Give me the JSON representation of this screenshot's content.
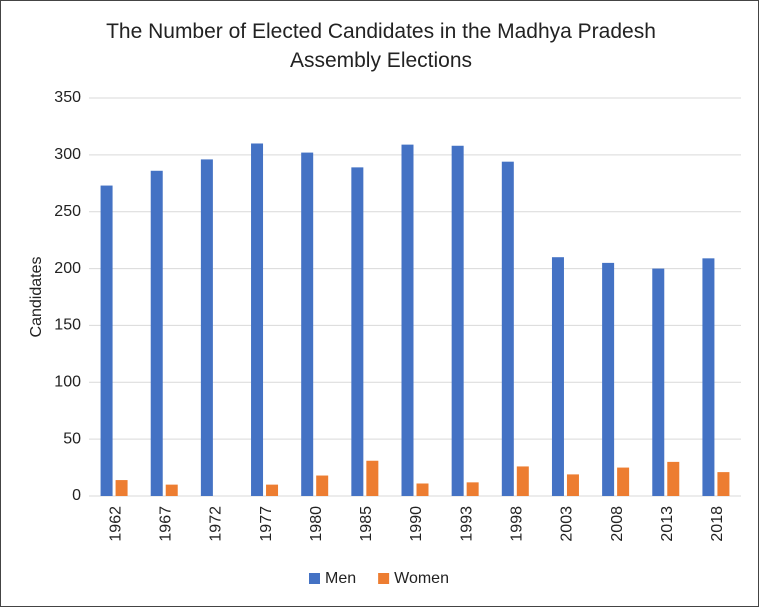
{
  "chart_data": {
    "type": "bar",
    "title": "The Number of Elected Candidates in the Madhya Pradesh Assembly Elections",
    "y_label": "Candidates",
    "categories": [
      "1962",
      "1967",
      "1972",
      "1977",
      "1980",
      "1985",
      "1990",
      "1993",
      "1998",
      "2003",
      "2008",
      "2013",
      "2018"
    ],
    "series": [
      {
        "name": "Men",
        "color": "#4472c4",
        "values": [
          273,
          286,
          296,
          310,
          302,
          289,
          309,
          308,
          294,
          210,
          205,
          200,
          209
        ]
      },
      {
        "name": "Women",
        "color": "#ed7d31",
        "values": [
          14,
          10,
          0,
          10,
          18,
          31,
          11,
          12,
          26,
          19,
          25,
          30,
          21
        ]
      }
    ],
    "ylim": [
      0,
      350
    ],
    "yticks": [
      0,
      50,
      100,
      150,
      200,
      250,
      300,
      350
    ],
    "grid": true,
    "legend": "bottom"
  }
}
